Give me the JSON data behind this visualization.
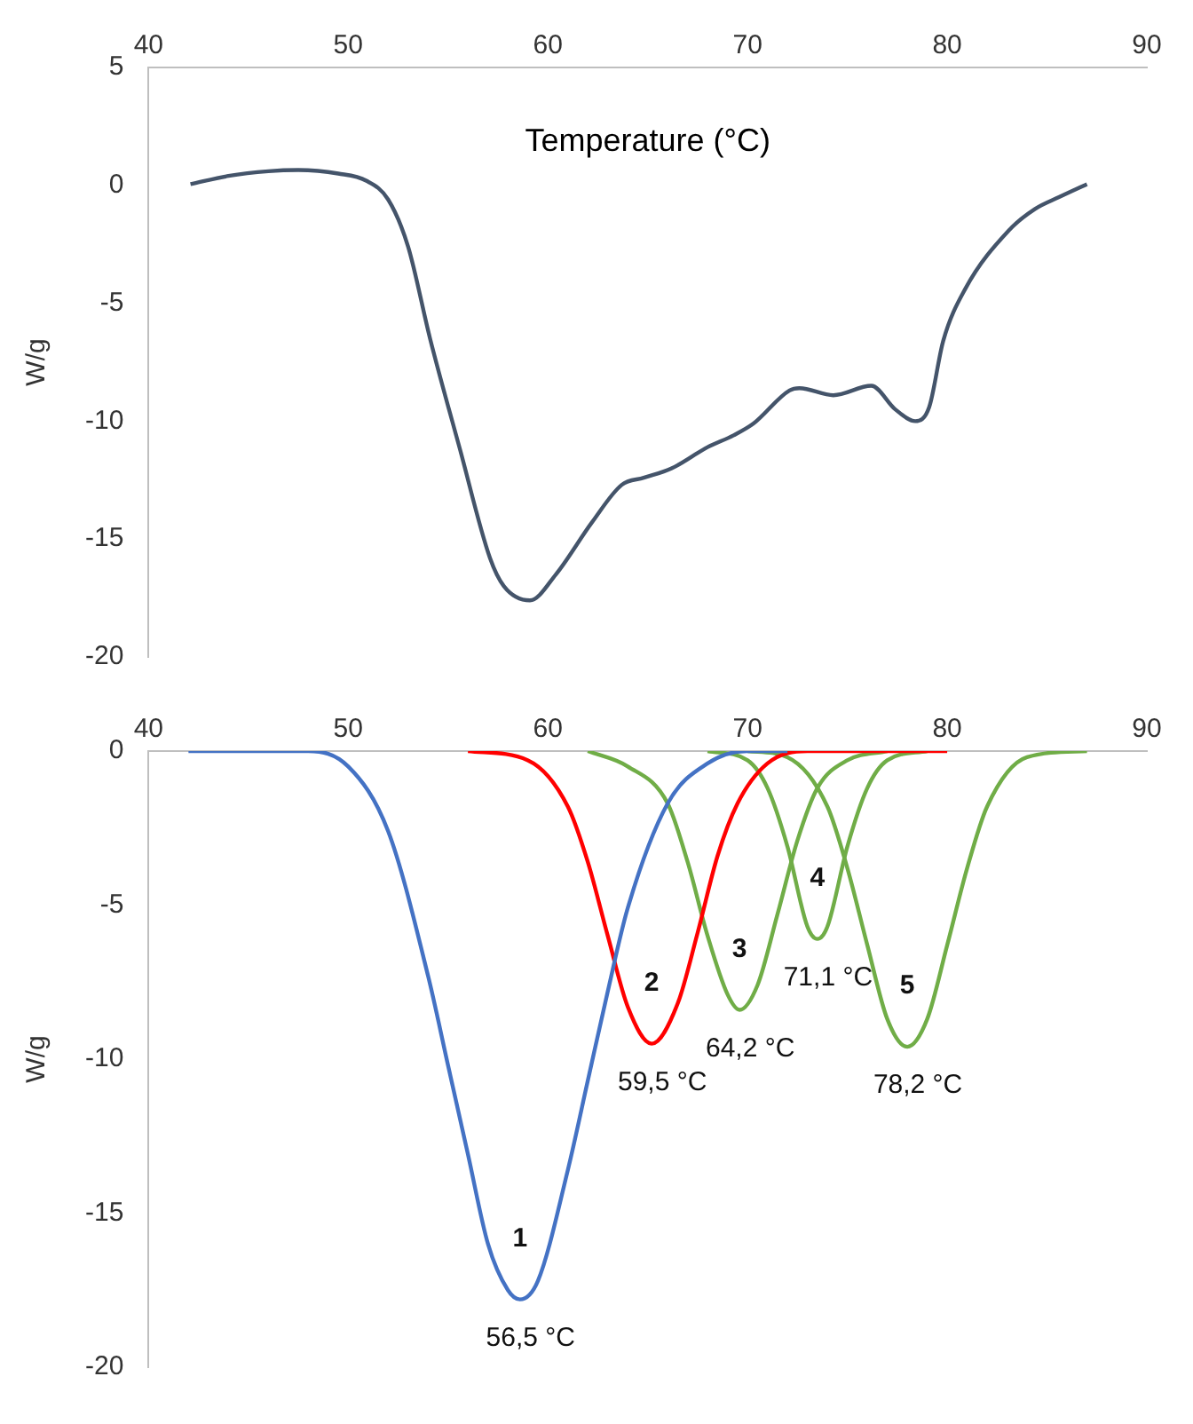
{
  "chart_data": [
    {
      "type": "line",
      "xlabel": "Temperature (°C)",
      "ylabel": "W/g",
      "xlim": [
        40,
        90
      ],
      "xticks": [
        40,
        50,
        60,
        70,
        80,
        90
      ],
      "ylim": [
        -20,
        5
      ],
      "yticks": [
        5,
        0,
        -5,
        -10,
        -15,
        -20
      ],
      "grid": false,
      "legend": false,
      "marker": "none",
      "line_style": "solid",
      "series": [
        {
          "color": "#44546a",
          "x": [
            42.1,
            44,
            46,
            47.5,
            49.5,
            50.9,
            52.0,
            53.0,
            54.1,
            55.6,
            57.1,
            57.8,
            59.1,
            60.4,
            62.2,
            63.7,
            64.8,
            66.2,
            68.0,
            69.3,
            70.3,
            72.1,
            72.6,
            74.3,
            76.2,
            77.4,
            78.4,
            79.1,
            79.8,
            80.9,
            83.1,
            84.4,
            85.6,
            87.0
          ],
          "values": [
            0.05,
            0.4,
            0.6,
            0.65,
            0.5,
            0.2,
            -0.6,
            -2.6,
            -6.5,
            -11.2,
            -15.8,
            -17.0,
            -17.6,
            -16.5,
            -14.3,
            -12.7,
            -12.4,
            -12.0,
            -11.1,
            -10.6,
            -10.1,
            -8.7,
            -8.6,
            -8.9,
            -8.5,
            -9.5,
            -10.0,
            -9.4,
            -6.6,
            -4.4,
            -1.9,
            -1.0,
            -0.5,
            0.05
          ]
        }
      ]
    },
    {
      "type": "line",
      "ylabel": "W/g",
      "xlim": [
        40,
        90
      ],
      "xticks": [
        40,
        50,
        60,
        70,
        80,
        90
      ],
      "ylim": [
        -20,
        0
      ],
      "yticks": [
        0,
        -5,
        -10,
        -15,
        -20
      ],
      "grid": false,
      "legend": false,
      "marker": "none",
      "line_style": "solid",
      "series": [
        {
          "color": "#4472c4",
          "x": [
            42,
            48,
            50,
            52,
            54,
            55,
            56,
            57,
            58,
            58.6,
            59.5,
            61,
            62,
            63,
            64,
            66,
            68,
            70,
            72
          ],
          "values": [
            0,
            0,
            -0.5,
            -2.6,
            -7.3,
            -10.2,
            -13.1,
            -16.0,
            -17.5,
            -17.8,
            -17.2,
            -13.6,
            -10.7,
            -7.8,
            -5.1,
            -1.7,
            -0.4,
            0,
            0
          ]
        },
        {
          "color": "#ff0000",
          "x": [
            56,
            59,
            61,
            62,
            63,
            64,
            65.2,
            66.5,
            67.5,
            68.5,
            69.5,
            71,
            73,
            80
          ],
          "values": [
            0,
            -0.3,
            -1.8,
            -3.6,
            -6.0,
            -8.3,
            -9.5,
            -8.2,
            -5.9,
            -3.4,
            -1.7,
            -0.4,
            0,
            0
          ]
        },
        {
          "color": "#70ad47",
          "x": [
            62,
            64,
            66,
            67,
            68,
            69,
            69.6,
            70.5,
            71.5,
            72.5,
            73.5,
            75,
            77
          ],
          "values": [
            0,
            -0.5,
            -1.7,
            -3.6,
            -6.0,
            -7.9,
            -8.4,
            -7.6,
            -5.3,
            -2.9,
            -1.2,
            -0.3,
            0
          ]
        },
        {
          "color": "#70ad47",
          "x": [
            68,
            70,
            71,
            72,
            73,
            73.5,
            74,
            75,
            76,
            77,
            79
          ],
          "values": [
            0,
            -0.3,
            -1.2,
            -3.1,
            -5.7,
            -6.1,
            -5.7,
            -3.1,
            -1.2,
            -0.3,
            0
          ]
        },
        {
          "color": "#70ad47",
          "x": [
            70,
            72,
            74,
            75,
            76,
            77,
            78,
            79,
            80,
            81,
            82,
            84,
            87
          ],
          "values": [
            0,
            -0.2,
            -1.8,
            -3.8,
            -6.3,
            -8.7,
            -9.6,
            -8.7,
            -6.3,
            -3.8,
            -1.8,
            -0.2,
            0
          ]
        }
      ],
      "annotations": [
        {
          "text": "1",
          "x": 58.6,
          "y": -17.8
        },
        {
          "text": "56,5 °C",
          "x": 58.6,
          "y": -17.8
        },
        {
          "text": "2",
          "x": 65.2,
          "y": -9.5
        },
        {
          "text": "59,5 °C",
          "x": 65.2,
          "y": -9.5
        },
        {
          "text": "3",
          "x": 69.6,
          "y": -8.4
        },
        {
          "text": "64,2 °C",
          "x": 69.6,
          "y": -8.4
        },
        {
          "text": "4",
          "x": 73.5,
          "y": -6.1
        },
        {
          "text": "71,1 °C",
          "x": 73.5,
          "y": -6.1
        },
        {
          "text": "5",
          "x": 78,
          "y": -9.6
        },
        {
          "text": "78,2 °C",
          "x": 78,
          "y": -9.6
        }
      ]
    }
  ]
}
